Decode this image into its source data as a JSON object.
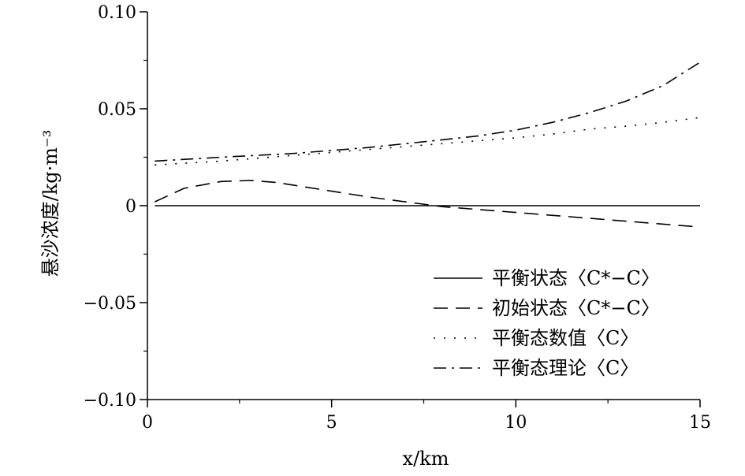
{
  "chart_data": {
    "type": "line",
    "xlabel": "x/km",
    "ylabel": "悬沙浓度/kg·m⁻³",
    "xlim": [
      0,
      15
    ],
    "ylim": [
      -0.1,
      0.1
    ],
    "x_ticks": [
      "0",
      "5",
      "10",
      "15"
    ],
    "y_ticks": [
      "0.10",
      "0.05",
      "0",
      "−0.05",
      "−0.10"
    ],
    "legend_position": "bottom-right",
    "grid": false,
    "series": [
      {
        "name": "平衡状态〈C*−C〉",
        "dash": "solid",
        "x": [
          0.2,
          15
        ],
        "y": [
          0.0,
          0.0
        ]
      },
      {
        "name": "初始状态〈C*−C〉",
        "dash": "dashed",
        "x": [
          0.2,
          1,
          2,
          2.8,
          3.5,
          4,
          5,
          6,
          7,
          8,
          9,
          10,
          11,
          12,
          13,
          14,
          15
        ],
        "y": [
          0.002,
          0.009,
          0.0125,
          0.013,
          0.012,
          0.0105,
          0.0075,
          0.0045,
          0.002,
          -0.0005,
          -0.002,
          -0.0035,
          -0.005,
          -0.0065,
          -0.008,
          -0.0095,
          -0.011
        ]
      },
      {
        "name": "平衡态数值〈C〉",
        "dash": "dotted",
        "x": [
          0.2,
          2,
          4,
          6,
          8,
          10,
          11,
          12,
          13,
          14,
          15
        ],
        "y": [
          0.021,
          0.023,
          0.026,
          0.029,
          0.032,
          0.035,
          0.037,
          0.0395,
          0.041,
          0.043,
          0.0455
        ]
      },
      {
        "name": "平衡态理论〈C〉",
        "dash": "dashdot",
        "x": [
          0.2,
          2,
          4,
          6,
          8,
          9,
          10,
          11,
          12,
          13,
          14,
          15
        ],
        "y": [
          0.023,
          0.025,
          0.027,
          0.03,
          0.034,
          0.036,
          0.039,
          0.043,
          0.048,
          0.054,
          0.062,
          0.074
        ]
      }
    ]
  }
}
